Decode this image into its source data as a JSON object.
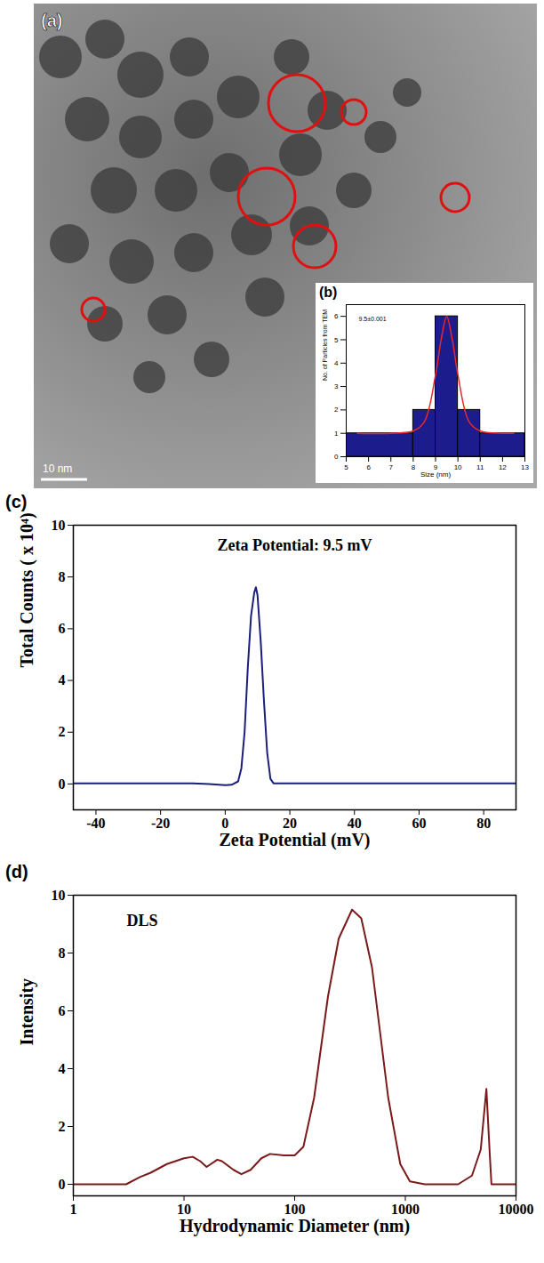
{
  "chart_data": [
    {
      "type": "image",
      "panel": "(a)",
      "scale_bar": "10 nm"
    },
    {
      "type": "histogram",
      "panel": "(b)",
      "annotation": "9.5±0.001",
      "bins": [
        5,
        8,
        9,
        10,
        11,
        13
      ],
      "values": [
        1,
        2,
        6,
        2,
        1
      ],
      "color": "#1c1c8c",
      "fit": {
        "x": [
          5.5,
          7,
          8,
          8.5,
          9,
          9.25,
          9.5,
          9.75,
          10,
          10.5,
          11,
          12,
          12.5
        ],
        "values": [
          1,
          1,
          1.1,
          1.5,
          3.5,
          5,
          6,
          5,
          3.5,
          1.5,
          1.1,
          1,
          1
        ],
        "color": "#e8282a"
      },
      "x_label": "Size (nm)",
      "y_label": "No. of Particles from TEM",
      "xlim": [
        5,
        13
      ],
      "xticks": [
        5,
        6,
        7,
        8,
        9,
        10,
        11,
        12,
        13
      ],
      "ylim": [
        0,
        6.5
      ],
      "yticks": [
        0,
        1,
        2,
        3,
        4,
        5,
        6
      ]
    },
    {
      "type": "line",
      "panel": "(c)",
      "title": "Zeta Potential: 9.5 mV",
      "x": [
        -47,
        -30,
        -10,
        -5,
        0,
        2,
        4,
        5,
        6,
        7,
        8,
        9,
        9.5,
        10,
        11,
        12,
        13,
        14,
        15,
        20,
        40,
        60,
        90
      ],
      "values": [
        0.02,
        0.02,
        0.02,
        0,
        -0.05,
        -0.03,
        0.1,
        0.6,
        2,
        4.5,
        6.5,
        7.4,
        7.6,
        7.3,
        5.5,
        3.2,
        1.2,
        0.2,
        0.02,
        0.02,
        0.02,
        0.02,
        0.02
      ],
      "color": "#1b1f7a",
      "x_label": "Zeta Potential (mV)",
      "y_label": "Total Counts ( x 10⁴)",
      "xlim": [
        -47,
        90
      ],
      "xticks": [
        -40,
        -20,
        0,
        20,
        40,
        60,
        80
      ],
      "ylim": [
        -1,
        10
      ],
      "yticks": [
        0,
        2,
        4,
        6,
        8,
        10
      ]
    },
    {
      "type": "line",
      "panel": "(d)",
      "annotation": "DLS",
      "log": "x",
      "x": [
        1,
        3,
        4,
        5,
        7,
        10,
        12,
        14,
        16,
        20,
        22,
        28,
        33,
        40,
        50,
        60,
        80,
        100,
        120,
        150,
        200,
        250,
        330,
        400,
        500,
        700,
        900,
        1100,
        1500,
        3000,
        4000,
        4800,
        5400,
        5800,
        6000,
        7000,
        10000
      ],
      "values": [
        0,
        0,
        0.25,
        0.4,
        0.7,
        0.9,
        0.95,
        0.8,
        0.6,
        0.85,
        0.8,
        0.5,
        0.35,
        0.5,
        0.9,
        1.05,
        1.0,
        1.0,
        1.3,
        3,
        6.5,
        8.5,
        9.5,
        9.2,
        7.5,
        3,
        0.7,
        0.1,
        0,
        0,
        0.3,
        1.2,
        3.3,
        1,
        0,
        0,
        0
      ],
      "color": "#7a1a1a",
      "x_label": "Hydrodynamic Diameter (nm)",
      "y_label": "Intensity",
      "xlim": [
        1,
        10000
      ],
      "xticks": [
        1,
        10,
        100,
        1000,
        10000
      ],
      "ylim": [
        -0.4,
        10
      ],
      "yticks": [
        0,
        2,
        4,
        6,
        8,
        10
      ]
    }
  ]
}
